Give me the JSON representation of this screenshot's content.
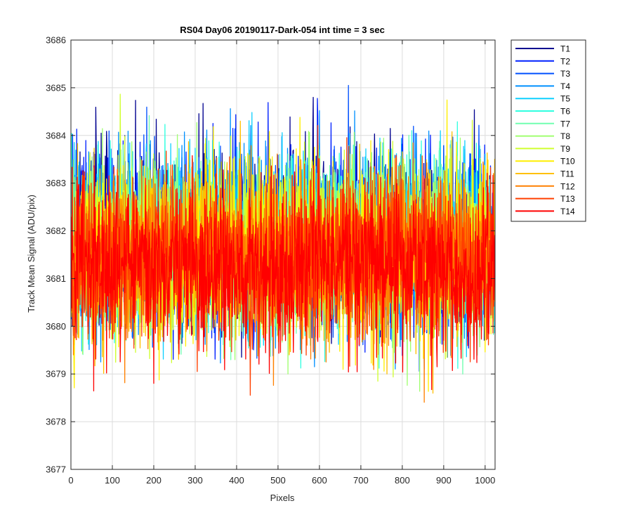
{
  "chart_data": {
    "type": "line",
    "title": "RS04 Day06 20190117-Dark-054 int time = 3 sec",
    "xlabel": "Pixels",
    "ylabel": "Track Mean Signal (ADU/pix)",
    "xlim": [
      0,
      1024
    ],
    "ylim": [
      3677,
      3686
    ],
    "xticks": [
      0,
      100,
      200,
      300,
      400,
      500,
      600,
      700,
      800,
      900,
      1000
    ],
    "yticks": [
      3677,
      3678,
      3679,
      3680,
      3681,
      3682,
      3683,
      3684,
      3685,
      3686
    ],
    "xtick_labels": [
      "0",
      "100",
      "200",
      "300",
      "400",
      "500",
      "600",
      "700",
      "800",
      "900",
      "1000"
    ],
    "ytick_labels": [
      "3677",
      "3678",
      "3679",
      "3680",
      "3681",
      "3682",
      "3683",
      "3684",
      "3685",
      "3686"
    ],
    "grid": true,
    "legend_position": "outside-top-right",
    "series_approx": "noise about the mean value; each track has 1024 pixel samples",
    "series": [
      {
        "name": "T1",
        "color": "#00008f",
        "mean": 3681.9,
        "std": 0.9
      },
      {
        "name": "T2",
        "color": "#0020ff",
        "mean": 3681.9,
        "std": 0.9
      },
      {
        "name": "T3",
        "color": "#0050ff",
        "mean": 3681.8,
        "std": 0.9
      },
      {
        "name": "T4",
        "color": "#0090ff",
        "mean": 3681.8,
        "std": 0.9
      },
      {
        "name": "T5",
        "color": "#10d0ff",
        "mean": 3681.8,
        "std": 0.88
      },
      {
        "name": "T6",
        "color": "#30ffe0",
        "mean": 3681.7,
        "std": 0.88
      },
      {
        "name": "T7",
        "color": "#70ffb0",
        "mean": 3681.7,
        "std": 0.87
      },
      {
        "name": "T8",
        "color": "#a0ff70",
        "mean": 3681.7,
        "std": 0.86
      },
      {
        "name": "T9",
        "color": "#d0ff30",
        "mean": 3681.6,
        "std": 0.86
      },
      {
        "name": "T10",
        "color": "#ffef00",
        "mean": 3681.6,
        "std": 0.85
      },
      {
        "name": "T11",
        "color": "#ffc000",
        "mean": 3681.5,
        "std": 0.85
      },
      {
        "name": "T12",
        "color": "#ff8000",
        "mean": 3681.4,
        "std": 0.85
      },
      {
        "name": "T13",
        "color": "#ff4000",
        "mean": 3681.4,
        "std": 0.84
      },
      {
        "name": "T14",
        "color": "#ff0000",
        "mean": 3681.3,
        "std": 0.84
      }
    ]
  }
}
